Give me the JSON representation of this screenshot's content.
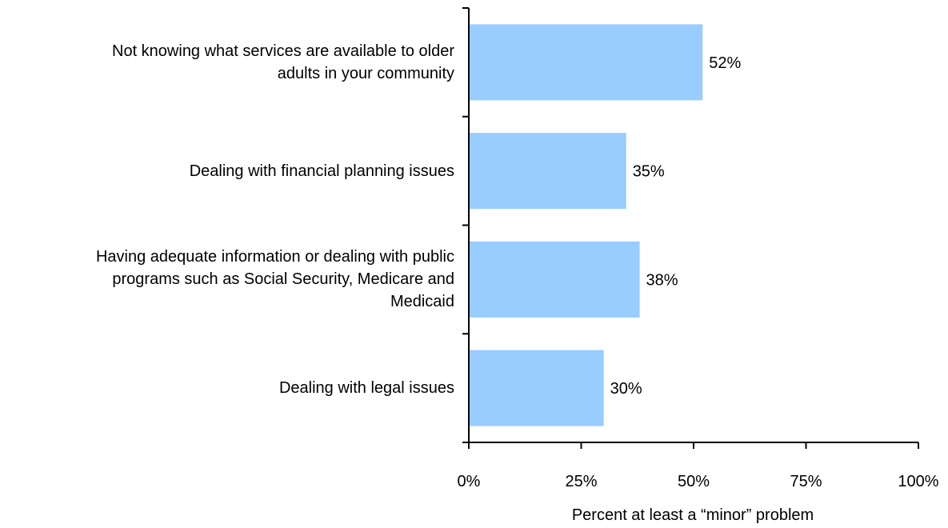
{
  "chart_data": {
    "type": "bar",
    "orientation": "horizontal",
    "categories": [
      "Not knowing what services are available to older adults in your community",
      "Dealing with financial planning issues",
      "Having adequate information or dealing with public programs such as Social Security, Medicare and Medicaid",
      "Dealing with legal issues"
    ],
    "category_lines": [
      [
        "Not knowing what services are available to older",
        "adults in your community"
      ],
      [
        "Dealing with financial planning issues"
      ],
      [
        "Having adequate information or dealing with public",
        "programs such as Social Security, Medicare and",
        "Medicaid"
      ],
      [
        "Dealing with legal issues"
      ]
    ],
    "values": [
      52,
      35,
      38,
      30
    ],
    "value_labels": [
      "52%",
      "35%",
      "38%",
      "30%"
    ],
    "xlim": [
      0,
      100
    ],
    "xticks": [
      0,
      25,
      50,
      75,
      100
    ],
    "xtick_labels": [
      "0%",
      "25%",
      "50%",
      "75%",
      "100%"
    ],
    "xlabel": "Percent at least a “minor” problem",
    "ylabel": "",
    "title": "",
    "grid": false,
    "legend": "none",
    "bar_color": "#99CCFF",
    "axis_color": "#000000"
  }
}
